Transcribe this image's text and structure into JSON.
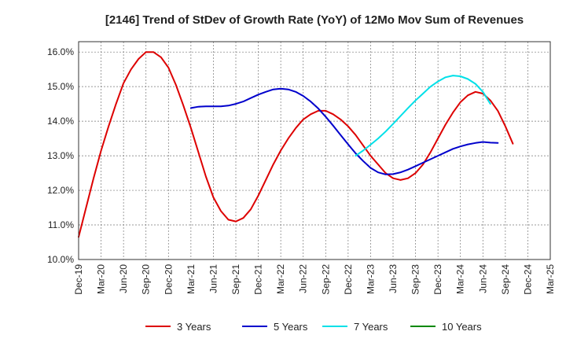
{
  "chart_data": {
    "type": "line",
    "title": "[2146]  Trend of StDev of Growth Rate (YoY) of 12Mo Mov Sum of Revenues",
    "xlabel": "",
    "ylabel": "",
    "ylim": [
      10.0,
      16.3
    ],
    "ytick_values": [
      10.0,
      11.0,
      12.0,
      13.0,
      14.0,
      15.0,
      16.0
    ],
    "yticks": [
      "10.0%",
      "11.0%",
      "12.0%",
      "13.0%",
      "14.0%",
      "15.0%",
      "16.0%"
    ],
    "xticks": [
      "Dec-19",
      "Mar-20",
      "Jun-20",
      "Sep-20",
      "Dec-20",
      "Mar-21",
      "Jun-21",
      "Sep-21",
      "Dec-21",
      "Mar-22",
      "Jun-22",
      "Sep-22",
      "Dec-22",
      "Mar-23",
      "Jun-23",
      "Sep-23",
      "Dec-23",
      "Mar-24",
      "Jun-24",
      "Sep-24",
      "Dec-24",
      "Mar-25"
    ],
    "grid": true,
    "legend_position": "bottom",
    "series": [
      {
        "name": "3 Years",
        "color": "#dd0000",
        "start_index": 0,
        "values": [
          10.65,
          11.5,
          12.35,
          13.15,
          13.85,
          14.5,
          15.1,
          15.5,
          15.8,
          16.0,
          16.0,
          15.85,
          15.55,
          15.05,
          14.45,
          13.8,
          13.1,
          12.4,
          11.8,
          11.4,
          11.15,
          11.1,
          11.2,
          11.45,
          11.85,
          12.3,
          12.75,
          13.15,
          13.5,
          13.8,
          14.05,
          14.2,
          14.3,
          14.3,
          14.2,
          14.05,
          13.85,
          13.6,
          13.3,
          13.0,
          12.75,
          12.5,
          12.35,
          12.3,
          12.35,
          12.5,
          12.75,
          13.1,
          13.5,
          13.9,
          14.25,
          14.55,
          14.75,
          14.85,
          14.8,
          14.6,
          14.3,
          13.85,
          13.35
        ]
      },
      {
        "name": "5 Years",
        "color": "#0000cc",
        "start_index": 15,
        "values": [
          14.38,
          14.42,
          14.43,
          14.43,
          14.43,
          14.45,
          14.5,
          14.57,
          14.67,
          14.77,
          14.85,
          14.92,
          14.94,
          14.92,
          14.85,
          14.73,
          14.57,
          14.37,
          14.13,
          13.87,
          13.6,
          13.33,
          13.07,
          12.85,
          12.65,
          12.52,
          12.46,
          12.47,
          12.52,
          12.6,
          12.7,
          12.8,
          12.9,
          13.0,
          13.1,
          13.2,
          13.27,
          13.33,
          13.37,
          13.4,
          13.38,
          13.37
        ]
      },
      {
        "name": "7 Years",
        "color": "#00e0e8",
        "start_index": 37,
        "values": [
          13.0,
          13.15,
          13.32,
          13.5,
          13.7,
          13.92,
          14.15,
          14.38,
          14.6,
          14.8,
          15.0,
          15.15,
          15.27,
          15.32,
          15.3,
          15.22,
          15.08,
          14.85,
          14.5
        ]
      },
      {
        "name": "10 Years",
        "color": "#008800",
        "start_index": 0,
        "values": []
      }
    ]
  }
}
